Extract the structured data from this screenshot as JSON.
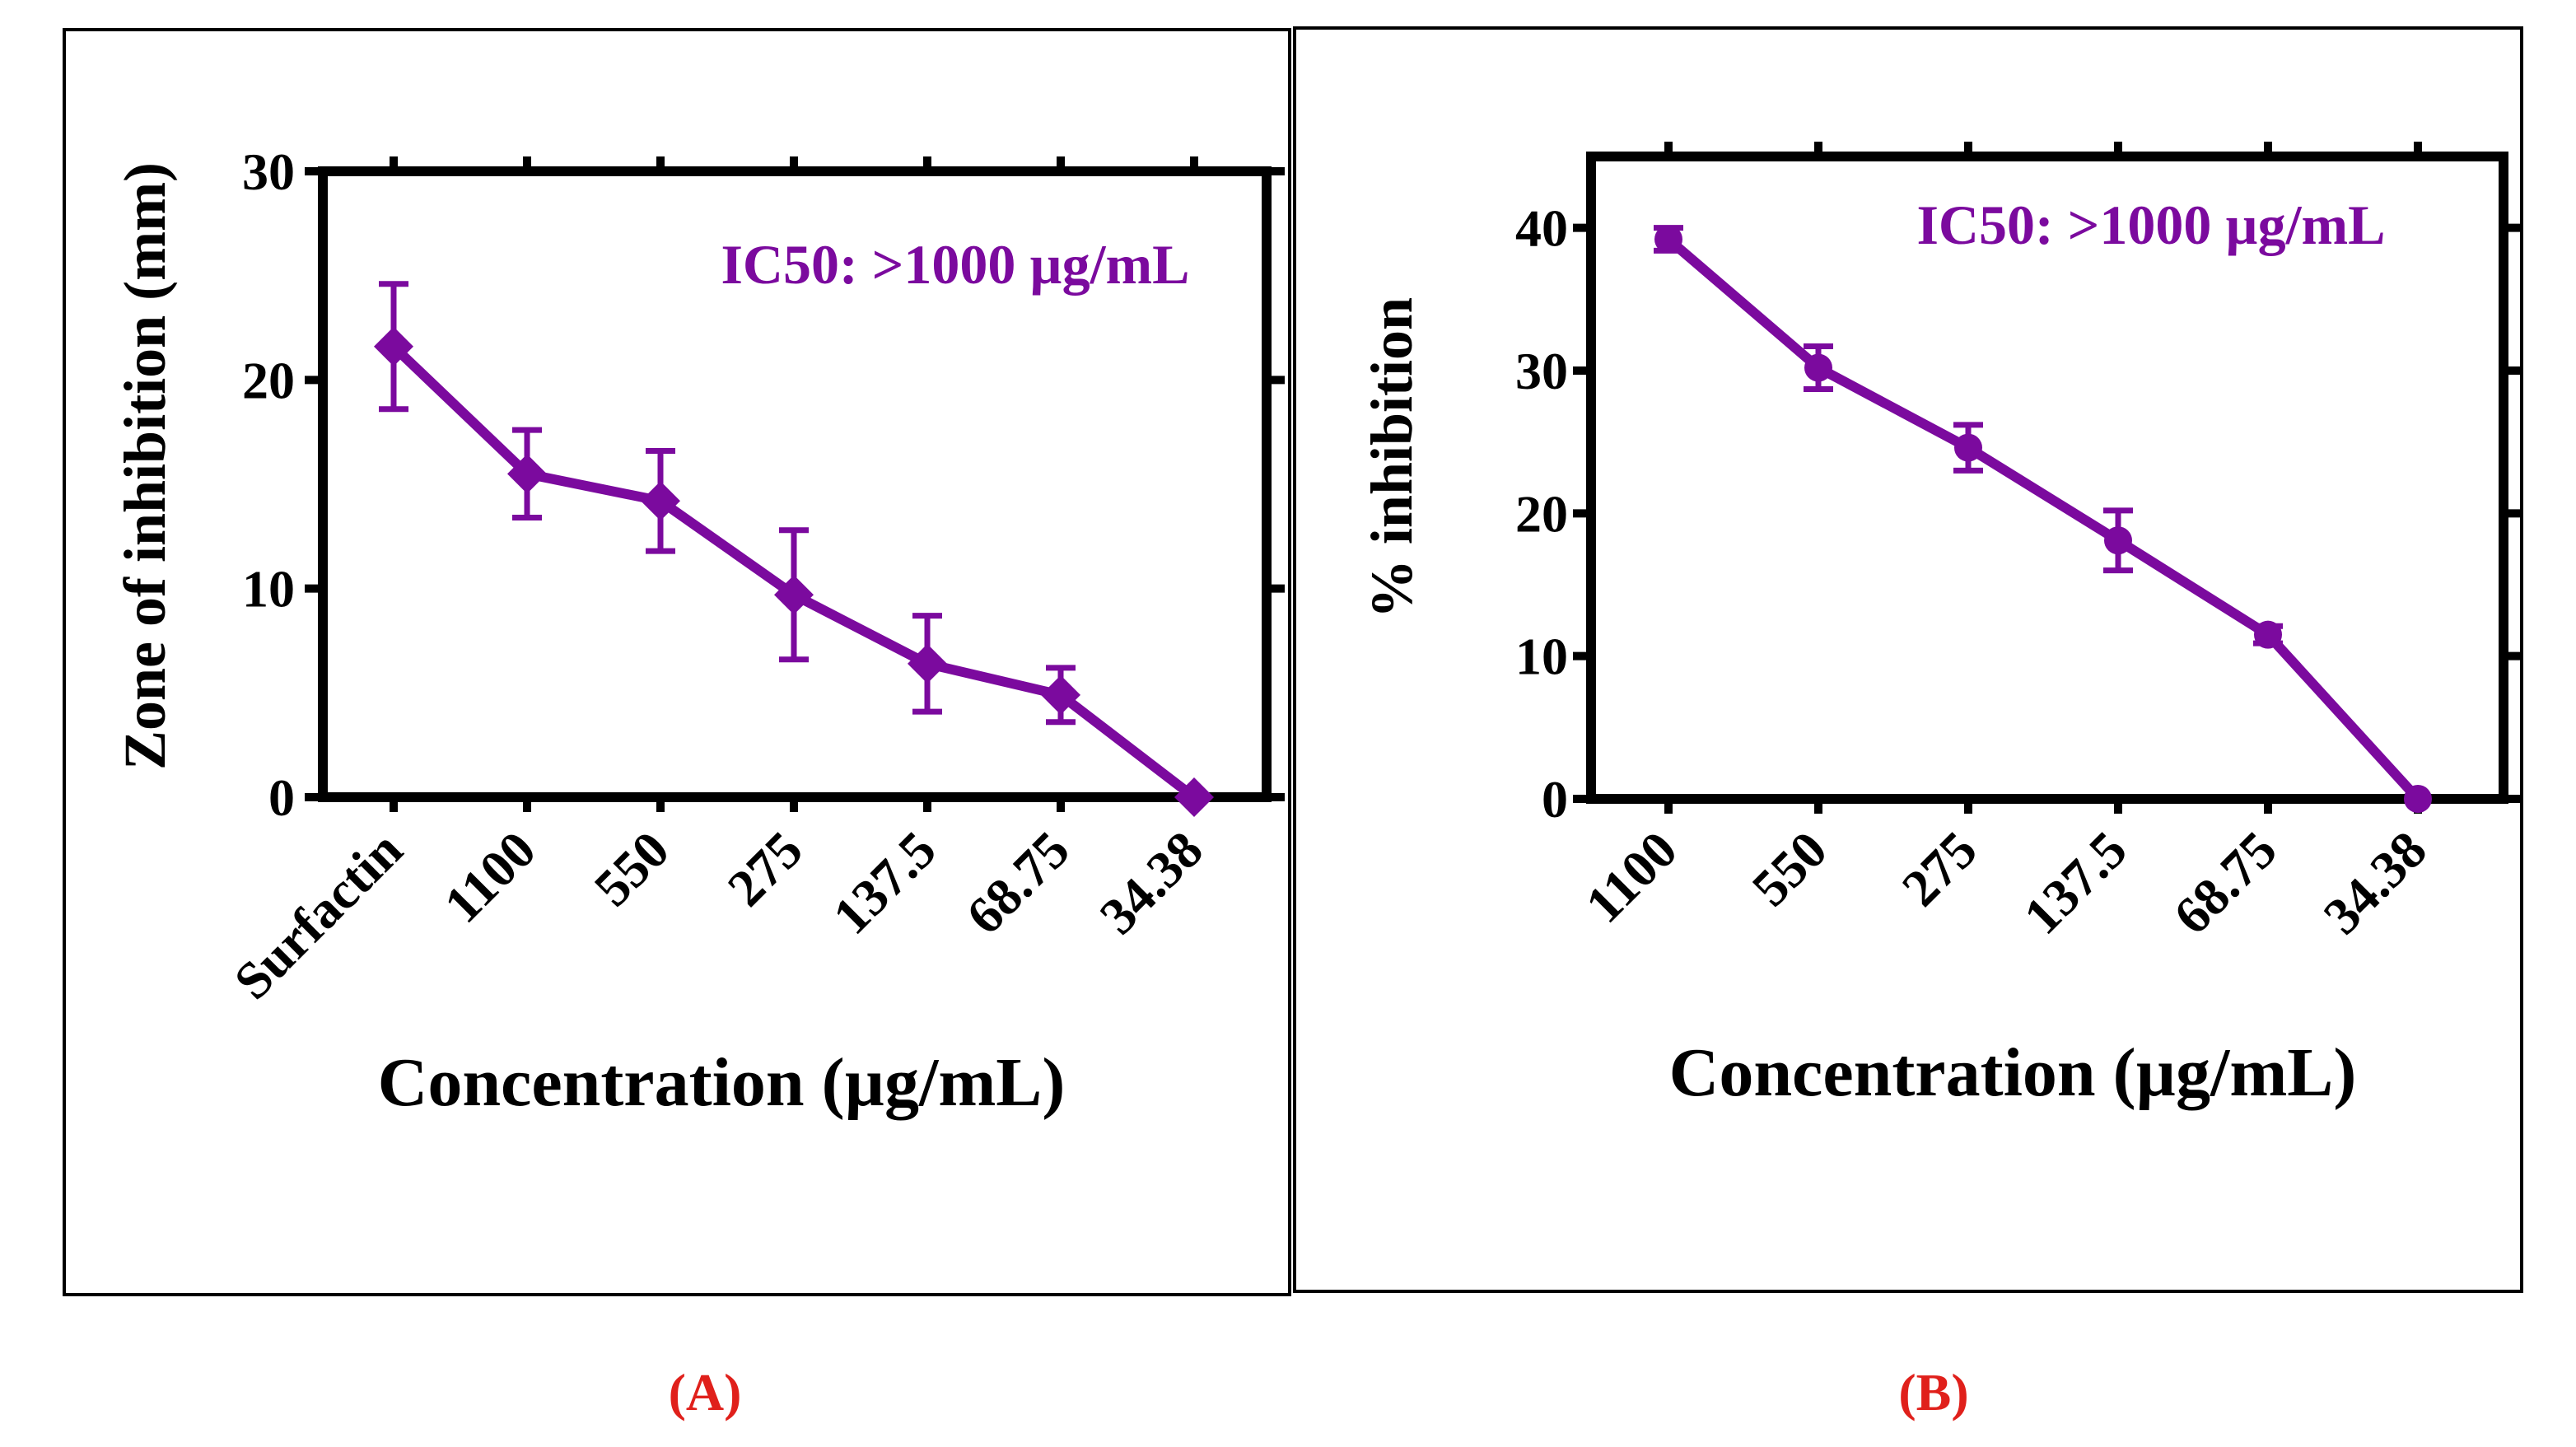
{
  "panels": [
    {
      "label": "(A)",
      "label_color": "#e0201b"
    },
    {
      "label": "(B)",
      "label_color": "#e0201b"
    }
  ],
  "colors": {
    "series": "#7b0a9e",
    "axis": "#000000",
    "frame": "#000000"
  },
  "chart_data": [
    {
      "type": "line",
      "xlabel": "Concentration (µg/mL)",
      "ylabel": "Zone of inhibition (mm)",
      "annotation": "IC50: >1000 µg/mL",
      "categories": [
        "Surfactin",
        "1100",
        "550",
        "275",
        "137.5",
        "68.75",
        "34.38"
      ],
      "values": [
        21.6,
        15.5,
        14.2,
        9.7,
        6.4,
        4.9,
        0
      ],
      "errors": [
        3.0,
        2.1,
        2.4,
        3.1,
        2.3,
        1.3,
        0
      ],
      "ylim": [
        0,
        30
      ],
      "yticks": [
        0,
        10,
        20,
        30
      ],
      "marker": "diamond",
      "grid": false
    },
    {
      "type": "line",
      "xlabel": "Concentration (µg/mL)",
      "ylabel": "% inhibition",
      "annotation": "IC50: >1000 µg/mL",
      "categories": [
        "1100",
        "550",
        "275",
        "137.5",
        "68.75",
        "34.38"
      ],
      "values": [
        39.2,
        30.2,
        24.6,
        18.1,
        11.5,
        0
      ],
      "errors": [
        0.8,
        1.5,
        1.6,
        2.1,
        0.6,
        0
      ],
      "ylim": [
        0,
        45
      ],
      "yticks": [
        0,
        10,
        20,
        30,
        40
      ],
      "marker": "circle",
      "grid": false
    }
  ]
}
